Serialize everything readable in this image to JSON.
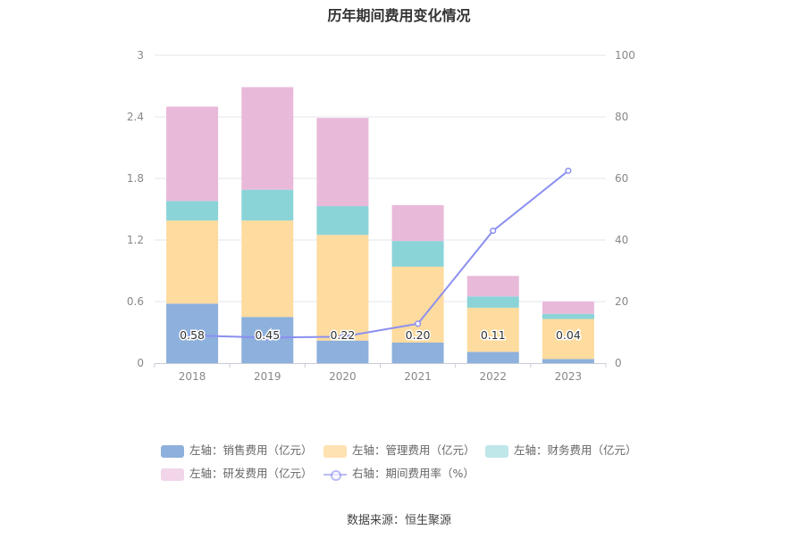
{
  "chart_data": {
    "type": "bar",
    "title": "历年期间费用变化情况",
    "categories": [
      "2018",
      "2019",
      "2020",
      "2021",
      "2022",
      "2023"
    ],
    "left_axis": {
      "min": 0,
      "max": 3,
      "ticks": [
        "0",
        "0.6",
        "1.2",
        "1.8",
        "2.4",
        "3"
      ],
      "tick_values": [
        0,
        0.6,
        1.2,
        1.8,
        2.4,
        3
      ]
    },
    "right_axis": {
      "min": 0,
      "max": 100,
      "ticks": [
        "0",
        "20",
        "40",
        "60",
        "80",
        "100"
      ],
      "tick_values": [
        0,
        20,
        40,
        60,
        80,
        100
      ]
    },
    "series": [
      {
        "name": "左轴：销售费用（亿元）",
        "axis": "left",
        "color": "#8eb0dc",
        "values": [
          0.58,
          0.45,
          0.22,
          0.2,
          0.11,
          0.04
        ],
        "labels": [
          "0.58",
          "0.45",
          "0.22",
          "0.20",
          "0.11",
          "0.04"
        ]
      },
      {
        "name": "左轴：管理费用（亿元）",
        "axis": "left",
        "color": "#fedb9e",
        "values": [
          0.81,
          0.94,
          1.03,
          0.74,
          0.43,
          0.39
        ]
      },
      {
        "name": "左轴：财务费用（亿元）",
        "axis": "left",
        "color": "#8ad4d8",
        "values": [
          0.19,
          0.3,
          0.28,
          0.25,
          0.11,
          0.05
        ]
      },
      {
        "name": "左轴：研发费用（亿元）",
        "axis": "left",
        "color": "#e9b9da",
        "values": [
          0.92,
          1.0,
          0.86,
          0.35,
          0.2,
          0.12
        ]
      },
      {
        "name": "右轴：期间费用率（%）",
        "axis": "right",
        "type": "line",
        "color": "#8a8ff0",
        "values": [
          9.0,
          8.3,
          8.6,
          12.8,
          43.0,
          62.5
        ]
      }
    ],
    "legend_position": "bottom",
    "grid": true
  },
  "source": "数据来源：恒生聚源"
}
